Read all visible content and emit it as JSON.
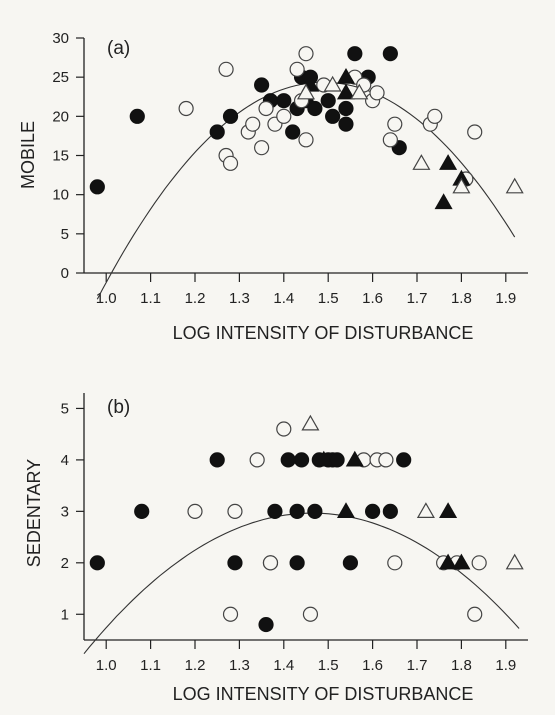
{
  "chart_data": [
    {
      "type": "scatter",
      "panel_label": "(a)",
      "xlabel": "LOG INTENSITY OF DISTURBANCE",
      "ylabel": "MOBILE",
      "xlim": [
        0.95,
        1.95
      ],
      "ylim": [
        0,
        30
      ],
      "x_ticks": [
        "1.0",
        "1.1",
        "1.2",
        "1.3",
        "1.4",
        "1.5",
        "1.6",
        "1.7",
        "1.8",
        "1.9"
      ],
      "x_tick_values": [
        1.0,
        1.1,
        1.2,
        1.3,
        1.4,
        1.5,
        1.6,
        1.7,
        1.8,
        1.9
      ],
      "y_ticks": [
        "0",
        "5",
        "10",
        "15",
        "20",
        "25",
        "30"
      ],
      "y_tick_values": [
        0,
        5,
        10,
        15,
        20,
        25,
        30
      ],
      "fit_curve": {
        "x_start": 0.98,
        "x_end": 1.92,
        "coefficients": [
          -212.24,
          317.66,
          -106.63
        ]
      },
      "series": [
        {
          "marker": "filled-circle",
          "points": [
            [
              0.98,
              11
            ],
            [
              1.07,
              20
            ],
            [
              1.25,
              18
            ],
            [
              1.28,
              20
            ],
            [
              1.35,
              24
            ],
            [
              1.37,
              22
            ],
            [
              1.4,
              22
            ],
            [
              1.42,
              18
            ],
            [
              1.43,
              21
            ],
            [
              1.44,
              25
            ],
            [
              1.45,
              22
            ],
            [
              1.46,
              25
            ],
            [
              1.47,
              21
            ],
            [
              1.5,
              22
            ],
            [
              1.51,
              20
            ],
            [
              1.54,
              21
            ],
            [
              1.54,
              19
            ],
            [
              1.56,
              28
            ],
            [
              1.59,
              25
            ],
            [
              1.64,
              28
            ],
            [
              1.66,
              16
            ]
          ]
        },
        {
          "marker": "open-circle",
          "points": [
            [
              1.18,
              21
            ],
            [
              1.27,
              26
            ],
            [
              1.27,
              15
            ],
            [
              1.28,
              14
            ],
            [
              1.32,
              18
            ],
            [
              1.33,
              19
            ],
            [
              1.35,
              16
            ],
            [
              1.36,
              21
            ],
            [
              1.38,
              19
            ],
            [
              1.4,
              20
            ],
            [
              1.43,
              26
            ],
            [
              1.44,
              22
            ],
            [
              1.45,
              28
            ],
            [
              1.45,
              17
            ],
            [
              1.49,
              24
            ],
            [
              1.56,
              25
            ],
            [
              1.58,
              24
            ],
            [
              1.6,
              22
            ],
            [
              1.61,
              23
            ],
            [
              1.64,
              17
            ],
            [
              1.65,
              19
            ],
            [
              1.73,
              19
            ],
            [
              1.74,
              20
            ],
            [
              1.81,
              12
            ],
            [
              1.83,
              18
            ]
          ]
        },
        {
          "marker": "filled-triangle",
          "points": [
            [
              1.46,
              24
            ],
            [
              1.54,
              25
            ],
            [
              1.54,
              23
            ],
            [
              1.76,
              9
            ],
            [
              1.77,
              14
            ],
            [
              1.8,
              12
            ]
          ]
        },
        {
          "marker": "open-triangle",
          "points": [
            [
              1.45,
              23
            ],
            [
              1.51,
              24
            ],
            [
              1.57,
              23
            ],
            [
              1.71,
              14
            ],
            [
              1.8,
              11
            ],
            [
              1.92,
              11
            ]
          ]
        }
      ]
    },
    {
      "type": "scatter",
      "panel_label": "(b)",
      "xlabel": "LOG INTENSITY OF DISTURBANCE",
      "ylabel": "SEDENTARY",
      "xlim": [
        0.95,
        1.95
      ],
      "ylim": [
        0.5,
        5.3
      ],
      "x_ticks": [
        "1.0",
        "1.1",
        "1.2",
        "1.3",
        "1.4",
        "1.5",
        "1.6",
        "1.7",
        "1.8",
        "1.9"
      ],
      "x_tick_values": [
        1.0,
        1.1,
        1.2,
        1.3,
        1.4,
        1.5,
        1.6,
        1.7,
        1.8,
        1.9
      ],
      "y_ticks": [
        "1",
        "2",
        "3",
        "4",
        "5"
      ],
      "y_tick_values": [
        1,
        2,
        3,
        4,
        5
      ],
      "fit_curve": {
        "x_start": 0.95,
        "x_end": 1.93,
        "coefficients": [
          -19.18,
          30.25,
          -10.33
        ]
      },
      "series": [
        {
          "marker": "filled-circle",
          "points": [
            [
              0.98,
              2
            ],
            [
              1.08,
              3
            ],
            [
              1.25,
              4
            ],
            [
              1.29,
              2
            ],
            [
              1.36,
              0.8
            ],
            [
              1.37,
              2
            ],
            [
              1.38,
              3
            ],
            [
              1.41,
              4
            ],
            [
              1.43,
              3
            ],
            [
              1.43,
              2
            ],
            [
              1.44,
              4
            ],
            [
              1.47,
              3
            ],
            [
              1.48,
              4
            ],
            [
              1.5,
              4
            ],
            [
              1.51,
              4
            ],
            [
              1.52,
              4
            ],
            [
              1.55,
              2
            ],
            [
              1.6,
              3
            ],
            [
              1.64,
              3
            ],
            [
              1.67,
              4
            ]
          ]
        },
        {
          "marker": "open-circle",
          "points": [
            [
              1.2,
              3
            ],
            [
              1.28,
              1
            ],
            [
              1.29,
              3
            ],
            [
              1.34,
              4
            ],
            [
              1.37,
              2
            ],
            [
              1.4,
              4.6
            ],
            [
              1.46,
              1
            ],
            [
              1.58,
              4
            ],
            [
              1.61,
              4
            ],
            [
              1.63,
              4
            ],
            [
              1.65,
              2
            ],
            [
              1.76,
              2
            ],
            [
              1.79,
              2
            ],
            [
              1.83,
              1
            ],
            [
              1.84,
              2
            ]
          ]
        },
        {
          "marker": "filled-triangle",
          "points": [
            [
              1.49,
              4
            ],
            [
              1.54,
              3
            ],
            [
              1.56,
              4
            ],
            [
              1.77,
              3
            ],
            [
              1.77,
              2
            ],
            [
              1.8,
              2
            ]
          ]
        },
        {
          "marker": "open-triangle",
          "points": [
            [
              1.46,
              4.7
            ],
            [
              1.72,
              3
            ],
            [
              1.92,
              2
            ]
          ]
        }
      ]
    }
  ]
}
